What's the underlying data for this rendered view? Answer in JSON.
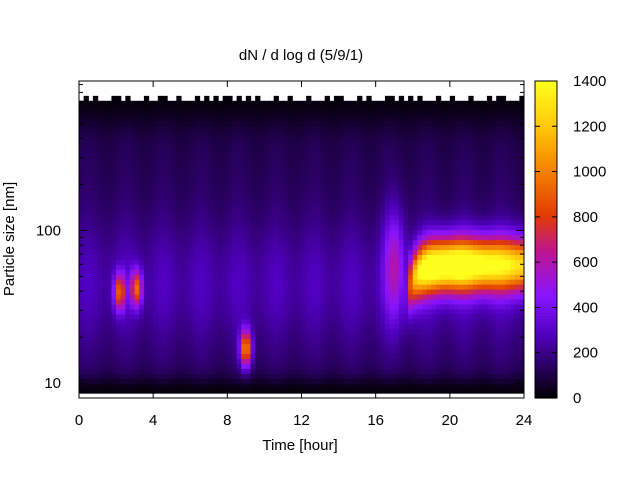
{
  "chart_data": {
    "type": "heatmap",
    "title": "dN / d log d (5/9/1)",
    "xlabel": "Time [hour]",
    "ylabel": "Particle size [nm]",
    "xlim": [
      0,
      24
    ],
    "x_ticks": [
      "0",
      "4",
      "8",
      "12",
      "16",
      "20",
      "24"
    ],
    "x_tick_values": [
      0,
      4,
      8,
      12,
      16,
      20,
      24
    ],
    "y_scale": "log",
    "ylim": [
      8,
      950
    ],
    "y_tick_labels": [
      {
        "value": 10,
        "label": "10"
      },
      {
        "value": 100,
        "label": "100"
      }
    ],
    "colorbar": {
      "range": [
        0,
        1400
      ],
      "ticks": [
        "0",
        "200",
        "400",
        "600",
        "800",
        "1000",
        "1200",
        "1400"
      ],
      "tick_values": [
        0,
        200,
        400,
        600,
        800,
        1000,
        1200,
        1400
      ],
      "palette": "black-purple-red-orange-yellow"
    },
    "features": [
      {
        "name": "mode near 40 nm",
        "t": 2.2,
        "d_nm": 40,
        "value": 680
      },
      {
        "name": "mode near 40 nm",
        "t": 3.1,
        "d_nm": 42,
        "value": 700
      },
      {
        "name": "mode near 17 nm",
        "t": 9.0,
        "d_nm": 17,
        "value": 880
      },
      {
        "name": "broad mode from 17.6 h",
        "t_start": 17.6,
        "t_end": 24,
        "d_nm": 60,
        "value": 1400
      }
    ],
    "background_level": 250
  }
}
